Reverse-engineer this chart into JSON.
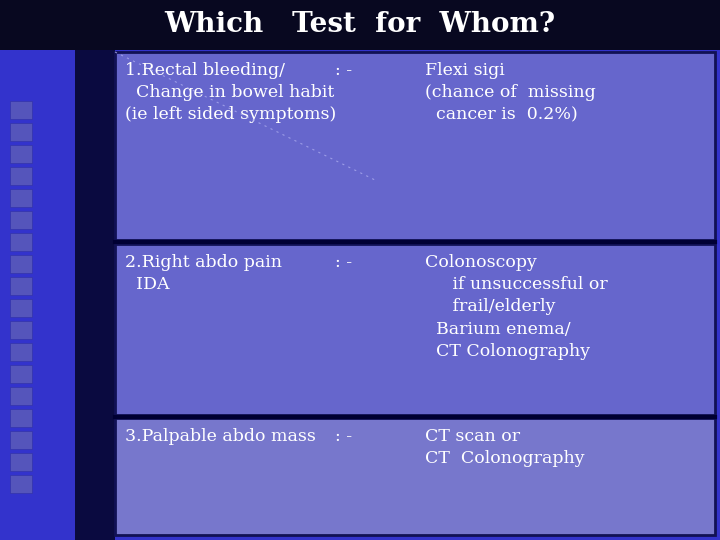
{
  "title": "Which   Test  for  Whom?",
  "title_color": "#ffffff",
  "title_bg_color": "#080820",
  "background_color": "#3333cc",
  "sidebar_blue": "#4444dd",
  "sidebar_dark": "#000033",
  "box_bg_color": "#6666cc",
  "box_bg_color2": "#7777cc",
  "box_border_color": "#111155",
  "text_color": "#ffffff",
  "rows": [
    {
      "left": "1.Rectal bleeding/\n  Change in bowel habit\n(ie left sided symptoms)",
      "middle": ": -",
      "right": "Flexi sigi\n(chance of  missing\n  cancer is  0.2%)"
    },
    {
      "left": "2.Right abdo pain\n  IDA",
      "middle": ": -",
      "right": "Colonoscopy\n     if unsuccessful or\n     frail/elderly\n  Barium enema/\n  CT Colonography"
    },
    {
      "left": "3.Palpable abdo mass",
      "middle": ": -",
      "right": "CT scan or\nCT  Colonography"
    }
  ],
  "font_size": 12.5,
  "title_font_size": 20
}
